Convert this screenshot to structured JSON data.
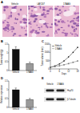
{
  "histology": {
    "label": "A",
    "images": [
      "Vehicle",
      "LAY207",
      "17AAG"
    ]
  },
  "chart_data": [
    {
      "label": "B",
      "type": "bar",
      "y_label": "Tumor weight (g)",
      "categories": [
        "Vehicle",
        "17AAG"
      ],
      "values": [
        1.2,
        0.4
      ],
      "errors": [
        0.15,
        0.08
      ],
      "colors": [
        "#111111",
        "#9a9a9a"
      ],
      "ylim": [
        0,
        1.5
      ],
      "yticks": [
        0,
        0.5,
        1,
        1.5
      ]
    },
    {
      "label": "C",
      "type": "line",
      "x_label": "Days",
      "y_label": "Tumor volume (mm³)",
      "x": [
        0,
        3,
        6,
        9,
        12,
        15,
        18
      ],
      "xlim": [
        0,
        18
      ],
      "xticks": [
        0,
        6,
        12,
        18
      ],
      "ylim": [
        0,
        1500
      ],
      "yticks": [
        0,
        500,
        1000,
        1500
      ],
      "legend": "top-left",
      "series": [
        {
          "name": "Vehicle",
          "color": "#111111",
          "marker": "circle",
          "values": [
            100,
            180,
            300,
            480,
            720,
            1000,
            1300
          ]
        },
        {
          "name": "17AAG",
          "color": "#777777",
          "marker": "square",
          "values": [
            100,
            140,
            190,
            250,
            320,
            400,
            480
          ]
        }
      ]
    },
    {
      "label": "D",
      "type": "bar",
      "y_label": "Relative expression",
      "categories": [
        "Vehicle",
        "17AAG"
      ],
      "values": [
        1.0,
        0.45
      ],
      "errors": [
        0.1,
        0.06
      ],
      "colors": [
        "#111111",
        "#9a9a9a"
      ],
      "ylim": [
        0,
        1.5
      ],
      "yticks": [
        0,
        0.5,
        1,
        1.5
      ]
    }
  ],
  "western_blot": {
    "label": "E",
    "lanes": [
      "Vehicle",
      "17AAG"
    ],
    "bands": [
      "Hsp70",
      "β-Tubulin"
    ]
  }
}
